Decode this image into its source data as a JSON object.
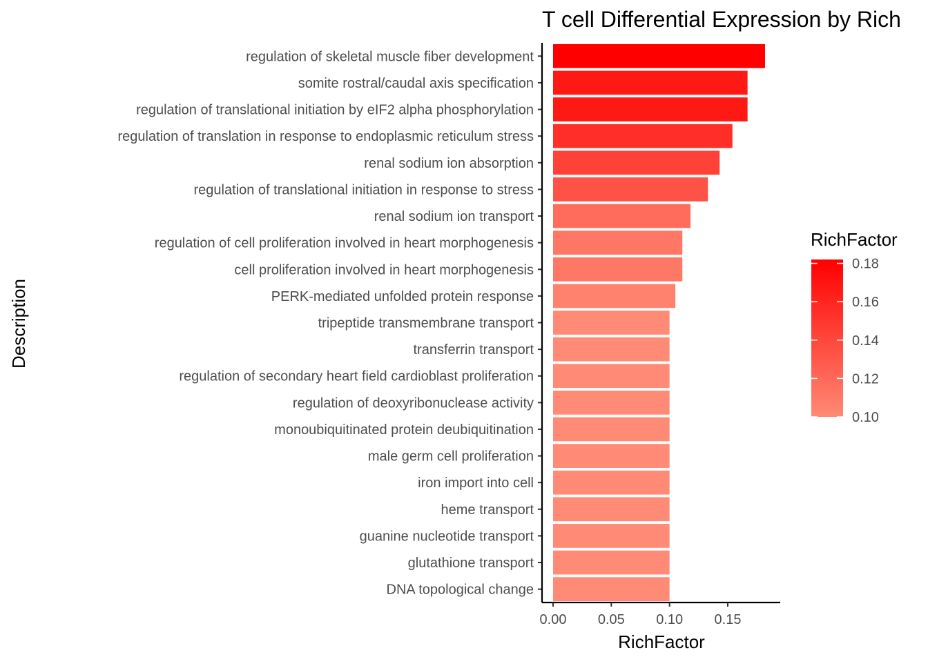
{
  "chart_data": {
    "type": "bar",
    "orientation": "horizontal",
    "title": "T cell Differential Expression by Rich",
    "xlabel": "RichFactor",
    "ylabel": "Description",
    "xlim": [
      0,
      0.19
    ],
    "x_ticks": [
      "0.00",
      "0.05",
      "0.10",
      "0.15"
    ],
    "x_tick_values": [
      0,
      0.05,
      0.1,
      0.15
    ],
    "grid": false,
    "categories": [
      "regulation of skeletal muscle fiber development",
      "somite rostral/caudal axis specification",
      "regulation of translational initiation by eIF2 alpha phosphorylation",
      "regulation of translation in response to endoplasmic reticulum stress",
      "renal sodium ion absorption",
      "regulation of translational initiation in response to stress",
      "renal sodium ion transport",
      "regulation of cell proliferation involved in heart morphogenesis",
      "cell proliferation involved in heart morphogenesis",
      "PERK-mediated unfolded protein response",
      "tripeptide transmembrane transport",
      "transferrin transport",
      "regulation of secondary heart field cardioblast proliferation",
      "regulation of deoxyribonuclease activity",
      "monoubiquitinated protein deubiquitination",
      "male germ cell proliferation",
      "iron import into cell",
      "heme transport",
      "guanine nucleotide transport",
      "glutathione transport",
      "DNA topological change"
    ],
    "values": [
      0.182,
      0.167,
      0.167,
      0.154,
      0.143,
      0.133,
      0.118,
      0.111,
      0.111,
      0.105,
      0.1,
      0.1,
      0.1,
      0.1,
      0.1,
      0.1,
      0.1,
      0.1,
      0.1,
      0.1,
      0.1
    ],
    "legend": {
      "title": "RichFactor",
      "position": "right",
      "range": [
        0.1,
        0.182
      ],
      "labels": [
        "0.18",
        "0.16",
        "0.14",
        "0.12",
        "0.10"
      ],
      "label_values": [
        0.18,
        0.16,
        0.14,
        0.12,
        0.1
      ],
      "color_low": "#FF8A75",
      "color_high": "#FF0000"
    }
  }
}
